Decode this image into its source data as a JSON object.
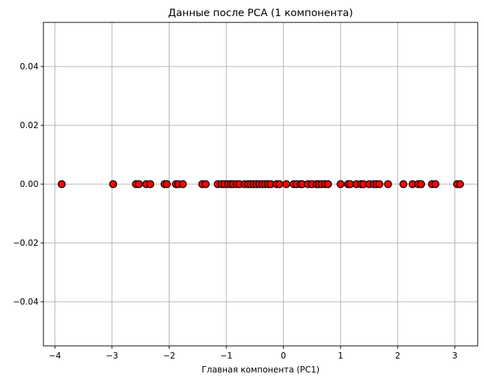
{
  "chart_data": {
    "type": "scatter",
    "title": "Данные после PCA (1 компонента)",
    "xlabel": "Главная компонента (PC1)",
    "ylabel": "",
    "xlim": [
      -4.2,
      3.4
    ],
    "ylim": [
      -0.055,
      0.055
    ],
    "x_ticks": [
      -4,
      -3,
      -2,
      -1,
      0,
      1,
      2,
      3
    ],
    "x_tick_labels": [
      "−4",
      "−3",
      "−2",
      "−1",
      "0",
      "1",
      "2",
      "3"
    ],
    "y_ticks": [
      -0.04,
      -0.02,
      0.0,
      0.02,
      0.04
    ],
    "y_tick_labels": [
      "−0.04",
      "−0.02",
      "0.00",
      "0.02",
      "0.04"
    ],
    "grid": true,
    "marker_color": "#ff0000",
    "marker_edge_color": "#000000",
    "series": [
      {
        "x": [
          -3.88,
          -2.98,
          -2.58,
          -2.53,
          -2.4,
          -2.33,
          -2.08,
          -2.04,
          -1.88,
          -1.84,
          -1.76,
          -1.42,
          -1.36,
          -1.15,
          -1.08,
          -1.03,
          -0.97,
          -0.92,
          -0.88,
          -0.82,
          -0.77,
          -0.68,
          -0.62,
          -0.57,
          -0.52,
          -0.47,
          -0.42,
          -0.37,
          -0.32,
          -0.27,
          -0.22,
          -0.12,
          -0.07,
          0.05,
          0.18,
          0.23,
          0.3,
          0.33,
          0.43,
          0.5,
          0.58,
          0.62,
          0.67,
          0.73,
          0.78,
          1.0,
          1.13,
          1.17,
          1.28,
          1.36,
          1.4,
          1.5,
          1.58,
          1.63,
          1.68,
          1.83,
          2.1,
          2.26,
          2.36,
          2.41,
          2.6,
          2.66,
          3.04,
          3.09
        ],
        "y": [
          0,
          0,
          0,
          0,
          0,
          0,
          0,
          0,
          0,
          0,
          0,
          0,
          0,
          0,
          0,
          0,
          0,
          0,
          0,
          0,
          0,
          0,
          0,
          0,
          0,
          0,
          0,
          0,
          0,
          0,
          0,
          0,
          0,
          0,
          0,
          0,
          0,
          0,
          0,
          0,
          0,
          0,
          0,
          0,
          0,
          0,
          0,
          0,
          0,
          0,
          0,
          0,
          0,
          0,
          0,
          0,
          0,
          0,
          0,
          0,
          0,
          0,
          0,
          0
        ]
      }
    ]
  }
}
